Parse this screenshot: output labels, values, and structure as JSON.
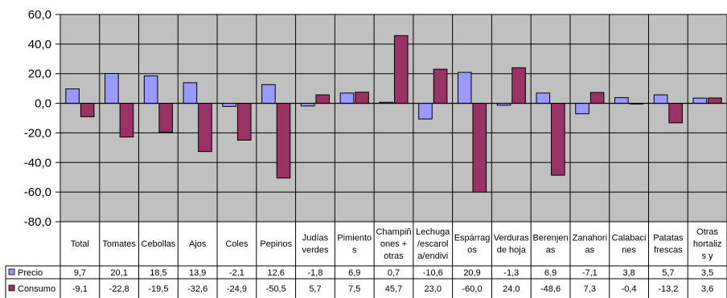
{
  "chart_data": {
    "type": "bar",
    "categories": [
      [
        "Total"
      ],
      [
        "Tomates"
      ],
      [
        "Cebollas"
      ],
      [
        "Ajos"
      ],
      [
        "Coles"
      ],
      [
        "Pepinos"
      ],
      [
        "Judías",
        "verdes"
      ],
      [
        "Pimiento",
        "s"
      ],
      [
        "Champiñ",
        "ones +",
        "otras"
      ],
      [
        "Lechuga",
        "/escarol",
        "a/endivi"
      ],
      [
        "Espárrag",
        "os"
      ],
      [
        "Verduras",
        "de hoja"
      ],
      [
        "Berenjen",
        "as"
      ],
      [
        "Zanahori",
        "as"
      ],
      [
        "Calabaci",
        "nes"
      ],
      [
        "Patatas",
        "frescas"
      ],
      [
        "Otras",
        "hortaliz",
        "s y"
      ]
    ],
    "series": [
      {
        "name": "Precio",
        "color": "#9999FF",
        "values": [
          9.7,
          20.1,
          18.5,
          13.9,
          -2.1,
          12.6,
          -1.8,
          6.9,
          0.7,
          -10.6,
          20.9,
          -1.3,
          6.9,
          -7.1,
          3.8,
          5.7,
          3.5
        ],
        "labels": [
          "9,7",
          "20,1",
          "18,5",
          "13,9",
          "-2,1",
          "12,6",
          "-1,8",
          "6,9",
          "0,7",
          "-10,6",
          "20,9",
          "-1,3",
          "6,9",
          "-7,1",
          "3,8",
          "5,7",
          "3,5"
        ]
      },
      {
        "name": "Consumo",
        "color": "#993366",
        "values": [
          -9.1,
          -22.8,
          -19.5,
          -32.6,
          -24.9,
          -50.5,
          5.7,
          7.5,
          45.7,
          23.0,
          -60.0,
          24.0,
          -48.6,
          7.3,
          -0.4,
          -13.2,
          3.6
        ],
        "labels": [
          "-9,1",
          "-22,8",
          "-19,5",
          "-32,6",
          "-24,9",
          "-50,5",
          "5,7",
          "7,5",
          "45,7",
          "23,0",
          "-60,0",
          "24,0",
          "-48,6",
          "7,3",
          "-0,4",
          "-13,2",
          "3,6"
        ]
      }
    ],
    "ylim": [
      -80,
      60
    ],
    "yticks": [
      "60,0",
      "40,0",
      "20,0",
      "0,0",
      "-20,0",
      "-40,0",
      "-60,0",
      "-80,0"
    ],
    "ytick_values": [
      60,
      40,
      20,
      0,
      -20,
      -40,
      -60,
      -80
    ],
    "grid": true,
    "plot_background": "#C0C0C0",
    "legend_placement": "data-table rows below chart"
  }
}
